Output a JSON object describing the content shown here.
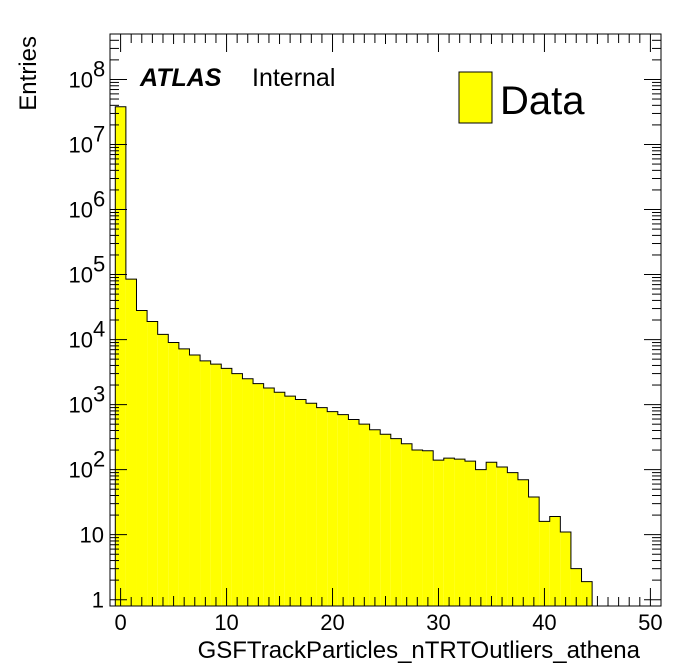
{
  "chart_data": {
    "type": "bar",
    "title": "",
    "xlabel": "GSFTrackParticles_nTRTOutliers_athena",
    "ylabel": "Entries",
    "x_scale": "linear",
    "y_scale": "log",
    "xlim": [
      -1,
      51
    ],
    "ylim": [
      0.8,
      500000000
    ],
    "grid": false,
    "legend": {
      "position": "top-right",
      "entries": [
        "Data"
      ]
    },
    "annotation": {
      "atlas": "ATLAS",
      "status": "Internal"
    },
    "x_tick_labels": [
      "0",
      "10",
      "20",
      "30",
      "40",
      "50"
    ],
    "y_tick_labels": [
      {
        "base": "1",
        "exp": ""
      },
      {
        "base": "10",
        "exp": ""
      },
      {
        "base": "10",
        "exp": "2"
      },
      {
        "base": "10",
        "exp": "3"
      },
      {
        "base": "10",
        "exp": "4"
      },
      {
        "base": "10",
        "exp": "5"
      },
      {
        "base": "10",
        "exp": "6"
      },
      {
        "base": "10",
        "exp": "7"
      },
      {
        "base": "10",
        "exp": "8"
      }
    ],
    "bin_width": 1,
    "bin_start": -0.5,
    "series": [
      {
        "name": "Data",
        "color": "#ffff00",
        "values": [
          38000000,
          85000,
          28000,
          19000,
          12000,
          9000,
          7200,
          5800,
          4700,
          4200,
          3600,
          3000,
          2500,
          2100,
          1800,
          1550,
          1350,
          1200,
          1050,
          900,
          780,
          700,
          590,
          500,
          410,
          350,
          300,
          250,
          200,
          195,
          140,
          150,
          145,
          135,
          100,
          130,
          110,
          90,
          70,
          38,
          16,
          19,
          11,
          3,
          1.9,
          0,
          0,
          0,
          0,
          0,
          0
        ]
      }
    ]
  }
}
